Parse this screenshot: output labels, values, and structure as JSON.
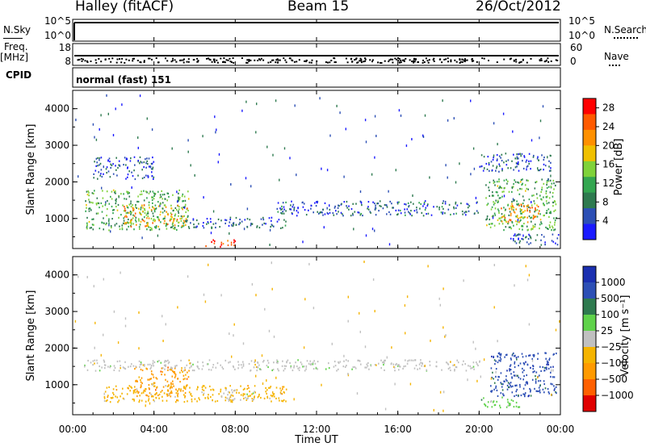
{
  "header": {
    "station": "Halley (fitACF)",
    "beam": "Beam 15",
    "date": "26/Oct/2012"
  },
  "left_labels": {
    "nsky": "N.Sky",
    "freq": "Freq.",
    "freq_unit": "[MHz]",
    "cpid": "CPID"
  },
  "right_labels": {
    "nsearch": "N.Search",
    "nave": "Nave"
  },
  "top_panels": {
    "noise_ticks_left": [
      "10^5",
      "10^0"
    ],
    "noise_ticks_right": [
      "10^5",
      "10^0"
    ],
    "freq_ticks": [
      "18",
      "8"
    ],
    "nave_ticks": [
      "60",
      "0"
    ],
    "cpid_text": "normal (fast) 151"
  },
  "colors": {
    "power": [
      "#1a1aff",
      "#2c4fb5",
      "#2e7a4f",
      "#33a650",
      "#7fd23a",
      "#f0c000",
      "#ff9000",
      "#ff5a00",
      "#ff0000"
    ],
    "velocity": [
      "#e00000",
      "#ff6000",
      "#ff9a00",
      "#f5b400",
      "#c0c0c0",
      "#5fd24a",
      "#2e7a4f",
      "#2c4fb5",
      "#1a2fb0"
    ]
  },
  "chart_data": [
    {
      "type": "heatmap",
      "title": "",
      "xlabel": "",
      "ylabel": "Slant Range [km]",
      "ylim": [
        180,
        4500
      ],
      "yticks": [
        "1000",
        "2000",
        "3000",
        "4000"
      ],
      "xticks": [
        "00:00",
        "04:00",
        "08:00",
        "12:00",
        "16:00",
        "20:00",
        "00:00"
      ],
      "colorbar": {
        "label": "Power [dB]",
        "ticks": [
          "28",
          "24",
          "20",
          "16",
          "12",
          "8",
          "4"
        ],
        "range": [
          0,
          30
        ]
      },
      "regions": [
        {
          "t0": 0.6,
          "t1": 5.7,
          "r0": 700,
          "r1": 1800,
          "level": 12
        },
        {
          "t0": 2.5,
          "t1": 5.7,
          "r0": 800,
          "r1": 1400,
          "level": 20
        },
        {
          "t0": 6.5,
          "t1": 8.0,
          "r0": 250,
          "r1": 450,
          "level": 26
        },
        {
          "t0": 5.5,
          "t1": 10.5,
          "r0": 750,
          "r1": 1050,
          "level": 6
        },
        {
          "t0": 1.0,
          "t1": 4.0,
          "r0": 2100,
          "r1": 2700,
          "level": 5
        },
        {
          "t0": 20.3,
          "t1": 23.8,
          "r0": 700,
          "r1": 2100,
          "level": 12
        },
        {
          "t0": 21.0,
          "t1": 23.0,
          "r0": 900,
          "r1": 1400,
          "level": 22
        },
        {
          "t0": 20.0,
          "t1": 23.5,
          "r0": 2300,
          "r1": 2800,
          "level": 5
        },
        {
          "t0": 21.5,
          "t1": 24.0,
          "r0": 300,
          "r1": 600,
          "level": 5
        },
        {
          "t0": 10.0,
          "t1": 20.0,
          "r0": 1100,
          "r1": 1500,
          "level": 6
        }
      ]
    },
    {
      "type": "heatmap",
      "title": "",
      "xlabel": "Time UT",
      "ylabel": "Slant Range [km]",
      "ylim": [
        180,
        4500
      ],
      "yticks": [
        "1000",
        "2000",
        "3000",
        "4000"
      ],
      "xticks": [
        "00:00",
        "04:00",
        "08:00",
        "12:00",
        "16:00",
        "20:00",
        "00:00"
      ],
      "colorbar": {
        "label": "Velocity [m s⁻¹]",
        "ticks": [
          "1000",
          "500",
          "100",
          "25",
          "−25",
          "−100",
          "−500",
          "−1000"
        ]
      },
      "regions": [
        {
          "t0": 3.0,
          "t1": 5.7,
          "r0": 700,
          "r1": 1500,
          "category": "-100"
        },
        {
          "t0": 1.5,
          "t1": 10.5,
          "r0": 550,
          "r1": 1000,
          "category": "-25"
        },
        {
          "t0": 7.5,
          "t1": 9.0,
          "r0": 600,
          "r1": 900,
          "category": "25"
        },
        {
          "t0": 20.5,
          "t1": 23.8,
          "r0": 700,
          "r1": 1900,
          "category": "500"
        },
        {
          "t0": 20.0,
          "t1": 22.0,
          "r0": 400,
          "r1": 700,
          "category": "100"
        },
        {
          "t0": 0.5,
          "t1": 20.0,
          "r0": 1400,
          "r1": 1700,
          "category": "25"
        }
      ]
    }
  ]
}
